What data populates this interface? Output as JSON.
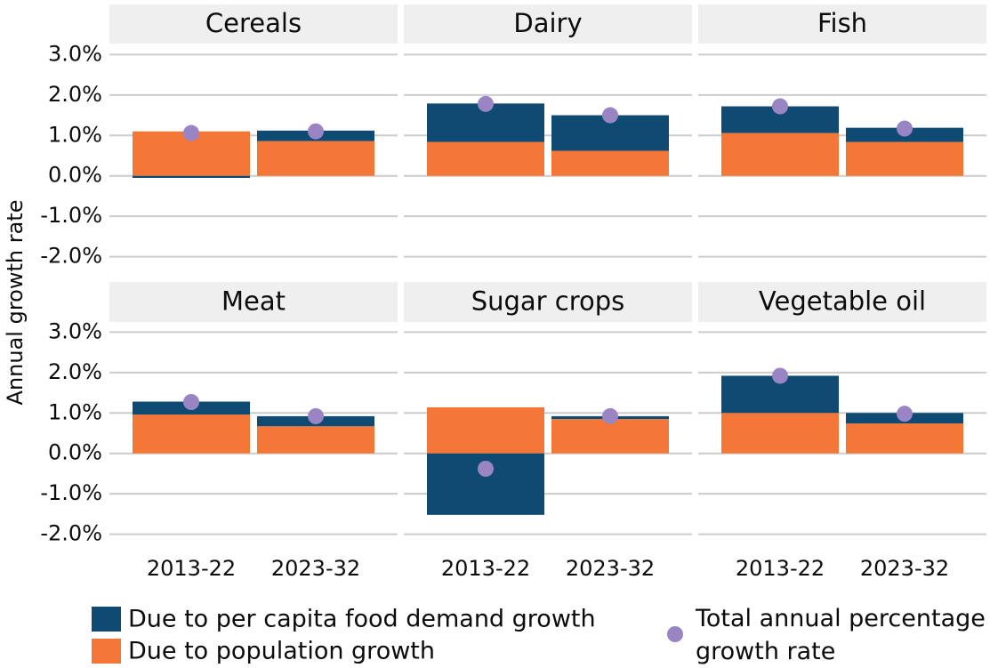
{
  "y_label": "Annual growth rate",
  "chart_data": [
    {
      "type": "bar",
      "title": "Cereals",
      "categories": [
        "2013-22",
        "2023-32"
      ],
      "series": [
        {
          "name": "Due to population growth",
          "color": "#f47738",
          "values": [
            1.1,
            0.86
          ]
        },
        {
          "name": "Due to per capita food demand growth",
          "color": "#0f4a73",
          "values": [
            -0.05,
            0.26
          ]
        },
        {
          "name": "Total annual percentage growth rate",
          "color": "#9a85c4",
          "type": "scatter",
          "values": [
            1.06,
            1.1
          ]
        }
      ],
      "ylim": [
        -2.25,
        3.25
      ],
      "yticks": [
        {
          "value": 3,
          "label": "3.0%"
        },
        {
          "value": 2,
          "label": "2.0%"
        },
        {
          "value": 1,
          "label": "1.0%"
        },
        {
          "value": 0,
          "label": "0.0%"
        },
        {
          "value": -1,
          "label": "-1.0%"
        },
        {
          "value": -2,
          "label": "-2.0%"
        }
      ]
    },
    {
      "type": "bar",
      "title": "Dairy",
      "categories": [
        "2013-22",
        "2023-32"
      ],
      "series": [
        {
          "name": "Due to population growth",
          "color": "#f47738",
          "values": [
            0.84,
            0.62
          ]
        },
        {
          "name": "Due to per capita food demand growth",
          "color": "#0f4a73",
          "values": [
            0.95,
            0.88
          ]
        },
        {
          "name": "Total annual percentage growth rate",
          "color": "#9a85c4",
          "type": "scatter",
          "values": [
            1.78,
            1.5
          ]
        }
      ],
      "ylim": [
        -2.25,
        3.25
      ],
      "yticks": [
        {
          "value": 3,
          "label": "3.0%"
        },
        {
          "value": 2,
          "label": "2.0%"
        },
        {
          "value": 1,
          "label": "1.0%"
        },
        {
          "value": 0,
          "label": "0.0%"
        },
        {
          "value": -1,
          "label": "-1.0%"
        },
        {
          "value": -2,
          "label": "-2.0%"
        }
      ]
    },
    {
      "type": "bar",
      "title": "Fish",
      "categories": [
        "2013-22",
        "2023-32"
      ],
      "series": [
        {
          "name": "Due to population growth",
          "color": "#f47738",
          "values": [
            1.06,
            0.84
          ]
        },
        {
          "name": "Due to per capita food demand growth",
          "color": "#0f4a73",
          "values": [
            0.66,
            0.35
          ]
        },
        {
          "name": "Total annual percentage growth rate",
          "color": "#9a85c4",
          "type": "scatter",
          "values": [
            1.72,
            1.17
          ]
        }
      ],
      "ylim": [
        -2.25,
        3.25
      ],
      "yticks": [
        {
          "value": 3,
          "label": "3.0%"
        },
        {
          "value": 2,
          "label": "2.0%"
        },
        {
          "value": 1,
          "label": "1.0%"
        },
        {
          "value": 0,
          "label": "0.0%"
        },
        {
          "value": -1,
          "label": "-1.0%"
        },
        {
          "value": -2,
          "label": "-2.0%"
        }
      ]
    },
    {
      "type": "bar",
      "title": "Meat",
      "categories": [
        "2013-22",
        "2023-32"
      ],
      "series": [
        {
          "name": "Due to population growth",
          "color": "#f47738",
          "values": [
            0.96,
            0.67
          ]
        },
        {
          "name": "Due to per capita food demand growth",
          "color": "#0f4a73",
          "values": [
            0.32,
            0.25
          ]
        },
        {
          "name": "Total annual percentage growth rate",
          "color": "#9a85c4",
          "type": "scatter",
          "values": [
            1.27,
            0.92
          ]
        }
      ],
      "ylim": [
        -2.25,
        3.25
      ],
      "yticks": [
        {
          "value": 3,
          "label": "3.0%"
        },
        {
          "value": 2,
          "label": "2.0%"
        },
        {
          "value": 1,
          "label": "1.0%"
        },
        {
          "value": 0,
          "label": "0.0%"
        },
        {
          "value": -1,
          "label": "-1.0%"
        },
        {
          "value": -2,
          "label": "-2.0%"
        }
      ]
    },
    {
      "type": "bar",
      "title": "Sugar crops",
      "categories": [
        "2013-22",
        "2023-32"
      ],
      "series": [
        {
          "name": "Due to population growth",
          "color": "#f47738",
          "values": [
            1.14,
            0.85
          ]
        },
        {
          "name": "Due to per capita food demand growth",
          "color": "#0f4a73",
          "values": [
            -1.52,
            0.07
          ]
        },
        {
          "name": "Total annual percentage growth rate",
          "color": "#9a85c4",
          "type": "scatter",
          "values": [
            -0.38,
            0.92
          ]
        }
      ],
      "ylim": [
        -2.25,
        3.25
      ],
      "yticks": [
        {
          "value": 3,
          "label": "3.0%"
        },
        {
          "value": 2,
          "label": "2.0%"
        },
        {
          "value": 1,
          "label": "1.0%"
        },
        {
          "value": 0,
          "label": "0.0%"
        },
        {
          "value": -1,
          "label": "-1.0%"
        },
        {
          "value": -2,
          "label": "-2.0%"
        }
      ]
    },
    {
      "type": "bar",
      "title": "Vegetable oil",
      "categories": [
        "2013-22",
        "2023-32"
      ],
      "series": [
        {
          "name": "Due to population growth",
          "color": "#f47738",
          "values": [
            1.0,
            0.74
          ]
        },
        {
          "name": "Due to per capita food demand growth",
          "color": "#0f4a73",
          "values": [
            0.92,
            0.26
          ]
        },
        {
          "name": "Total annual percentage growth rate",
          "color": "#9a85c4",
          "type": "scatter",
          "values": [
            1.92,
            0.98
          ]
        }
      ],
      "ylim": [
        -2.25,
        3.25
      ],
      "yticks": [
        {
          "value": 3,
          "label": "3.0%"
        },
        {
          "value": 2,
          "label": "2.0%"
        },
        {
          "value": 1,
          "label": "1.0%"
        },
        {
          "value": 0,
          "label": "0.0%"
        },
        {
          "value": -1,
          "label": "-1.0%"
        },
        {
          "value": -2,
          "label": "-2.0%"
        }
      ]
    }
  ]
}
